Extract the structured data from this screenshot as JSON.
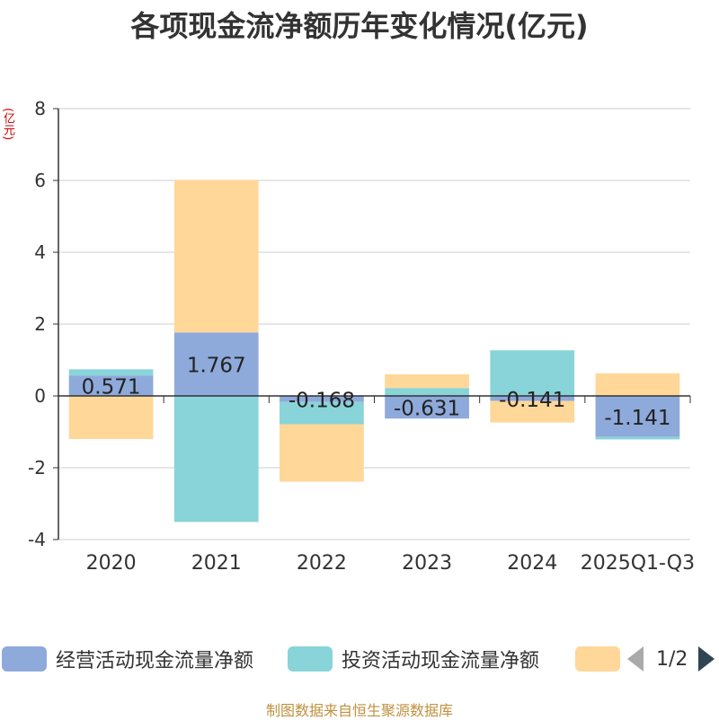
{
  "title": "各项现金流净额历年变化情况(亿元)",
  "y_unit": "(亿元)",
  "source": "制图数据来自恒生聚源数据库",
  "legend": {
    "items": [
      {
        "label": "经营活动现金流量净额",
        "color": "#8eaadb"
      },
      {
        "label": "投资活动现金流量净额",
        "color": "#88d4d8"
      },
      {
        "label": "",
        "color": "#ffd799"
      }
    ],
    "page": "1/2"
  },
  "chart_data": {
    "type": "bar",
    "stacked": true,
    "categories": [
      "2020",
      "2021",
      "2022",
      "2023",
      "2024",
      "2025Q1-Q3"
    ],
    "ylim": [
      -4,
      8
    ],
    "yticks": [
      -4,
      -2,
      0,
      2,
      4,
      6,
      8
    ],
    "grid": true,
    "legend_position": "bottom",
    "series": [
      {
        "name": "经营活动现金流量净额",
        "color": "#8eaadb",
        "values": [
          0.571,
          1.767,
          -0.168,
          -0.631,
          -0.141,
          -1.141
        ],
        "data_labels": [
          "0.571",
          "1.767",
          "-0.168",
          "-0.631",
          "-0.141",
          "-1.141"
        ]
      },
      {
        "name": "投资活动现金流量净额",
        "color": "#88d4d8",
        "values": [
          0.17,
          -3.51,
          -0.62,
          0.22,
          1.27,
          -0.07
        ]
      },
      {
        "name": "",
        "color": "#ffd799",
        "values": [
          -1.2,
          4.25,
          -1.6,
          0.38,
          -0.6,
          0.63
        ]
      }
    ]
  }
}
